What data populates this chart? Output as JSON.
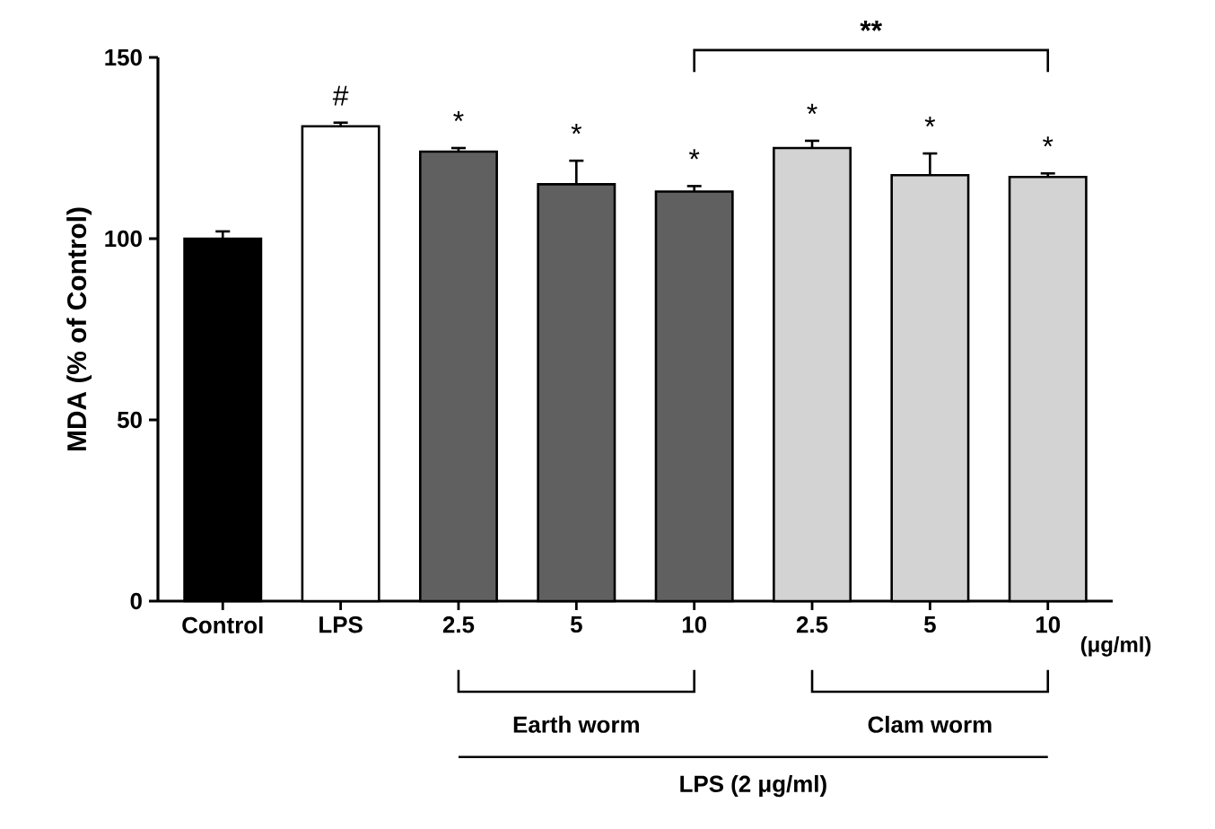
{
  "chart_data": {
    "type": "bar",
    "ylabel": "MDA (% of Control)",
    "categories": [
      "Control",
      "LPS",
      "2.5",
      "5",
      "10",
      "2.5",
      "5",
      "10"
    ],
    "values": [
      100,
      131,
      124,
      115,
      113,
      125,
      117.5,
      117
    ],
    "colors": [
      "#000000",
      "#ffffff",
      "#606060",
      "#606060",
      "#606060",
      "#d3d3d3",
      "#d3d3d3",
      "#d3d3d3"
    ],
    "errors": [
      2,
      1,
      1,
      6.5,
      1.5,
      2,
      6,
      1
    ],
    "value_labels": [
      null,
      "#",
      "*",
      "*",
      "*",
      "*",
      "*",
      "*"
    ],
    "ylim": [
      0,
      150
    ],
    "yticks": [
      0,
      50,
      100,
      150
    ],
    "annotations": [
      "**",
      "(μg/ml)",
      "Earth worm",
      "Clam worm",
      "LPS (2 μg/ml)"
    ]
  }
}
